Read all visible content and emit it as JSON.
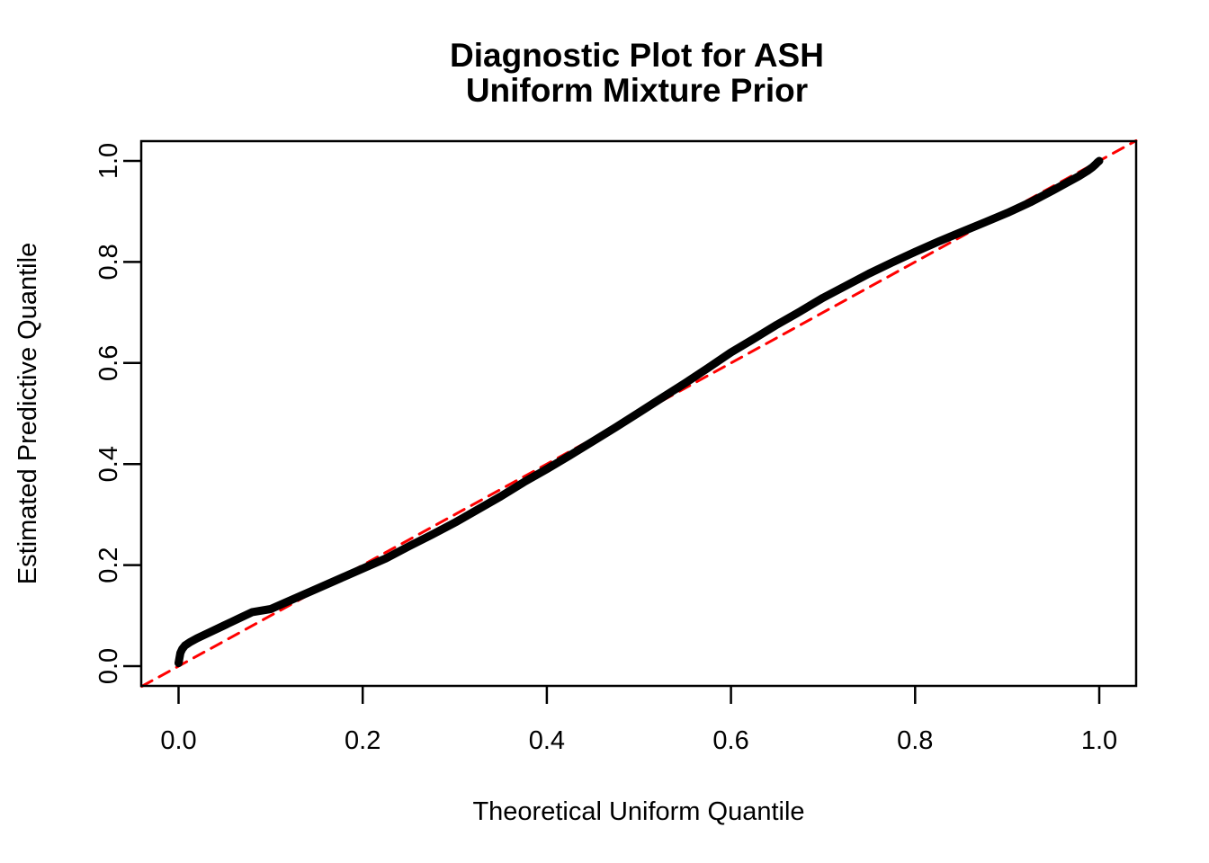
{
  "title": {
    "line1": "Diagnostic Plot for ASH",
    "line2": "Uniform Mixture Prior"
  },
  "axes": {
    "xlabel": "Theoretical Uniform Quantile",
    "ylabel": "Estimated Predictive Quantile",
    "x_tick_labels": [
      "0.0",
      "0.2",
      "0.4",
      "0.6",
      "0.8",
      "1.0"
    ],
    "y_tick_labels": [
      "0.0",
      "0.2",
      "0.4",
      "0.6",
      "0.8",
      "1.0"
    ],
    "x_tick_values": [
      0,
      0.2,
      0.4,
      0.6,
      0.8,
      1.0
    ],
    "y_tick_values": [
      0,
      0.2,
      0.4,
      0.6,
      0.8,
      1.0
    ]
  },
  "colors": {
    "curve": "#000000",
    "reference_line": "#FF0000",
    "background": "#FFFFFF",
    "text": "#000000"
  },
  "chart_data": {
    "type": "line",
    "subtype": "qq-plot",
    "title": "Diagnostic Plot for ASH\nUniform Mixture Prior",
    "xlabel": "Theoretical Uniform Quantile",
    "ylabel": "Estimated Predictive Quantile",
    "xlim": [
      -0.04,
      1.04
    ],
    "ylim": [
      -0.04,
      1.04
    ],
    "grid": false,
    "legend": "none",
    "x_ticks": [
      0,
      0.2,
      0.4,
      0.6,
      0.8,
      1.0
    ],
    "y_ticks": [
      0,
      0.2,
      0.4,
      0.6,
      0.8,
      1.0
    ],
    "series": [
      {
        "name": "estimated-predictive-quantile-curve",
        "type": "line",
        "color": "#000000",
        "line_width": 9,
        "line_style": "solid",
        "points": [
          [
            0.0,
            0.006
          ],
          [
            0.001,
            0.016
          ],
          [
            0.002,
            0.026
          ],
          [
            0.004,
            0.034
          ],
          [
            0.007,
            0.041
          ],
          [
            0.012,
            0.047
          ],
          [
            0.02,
            0.055
          ],
          [
            0.035,
            0.068
          ],
          [
            0.05,
            0.081
          ],
          [
            0.065,
            0.094
          ],
          [
            0.08,
            0.107
          ],
          [
            0.1,
            0.113
          ],
          [
            0.12,
            0.129
          ],
          [
            0.14,
            0.145
          ],
          [
            0.16,
            0.161
          ],
          [
            0.18,
            0.177
          ],
          [
            0.2,
            0.193
          ],
          [
            0.225,
            0.213
          ],
          [
            0.25,
            0.237
          ],
          [
            0.275,
            0.26
          ],
          [
            0.3,
            0.284
          ],
          [
            0.325,
            0.31
          ],
          [
            0.35,
            0.336
          ],
          [
            0.375,
            0.364
          ],
          [
            0.4,
            0.39
          ],
          [
            0.425,
            0.417
          ],
          [
            0.45,
            0.445
          ],
          [
            0.475,
            0.473
          ],
          [
            0.5,
            0.502
          ],
          [
            0.525,
            0.531
          ],
          [
            0.55,
            0.56
          ],
          [
            0.575,
            0.59
          ],
          [
            0.6,
            0.621
          ],
          [
            0.625,
            0.648
          ],
          [
            0.65,
            0.676
          ],
          [
            0.675,
            0.702
          ],
          [
            0.7,
            0.729
          ],
          [
            0.725,
            0.753
          ],
          [
            0.75,
            0.777
          ],
          [
            0.775,
            0.799
          ],
          [
            0.8,
            0.82
          ],
          [
            0.825,
            0.84
          ],
          [
            0.85,
            0.859
          ],
          [
            0.875,
            0.878
          ],
          [
            0.9,
            0.897
          ],
          [
            0.925,
            0.918
          ],
          [
            0.95,
            0.942
          ],
          [
            0.965,
            0.957
          ],
          [
            0.978,
            0.97
          ],
          [
            0.987,
            0.98
          ],
          [
            0.993,
            0.988
          ],
          [
            0.996,
            0.993
          ],
          [
            0.998,
            0.997
          ],
          [
            1.0,
            1.0
          ]
        ]
      },
      {
        "name": "identity-reference-line",
        "type": "line",
        "color": "#FF0000",
        "line_width": 3,
        "line_style": "dashed",
        "points": [
          [
            -0.04,
            -0.04
          ],
          [
            1.04,
            1.04
          ]
        ]
      }
    ]
  }
}
